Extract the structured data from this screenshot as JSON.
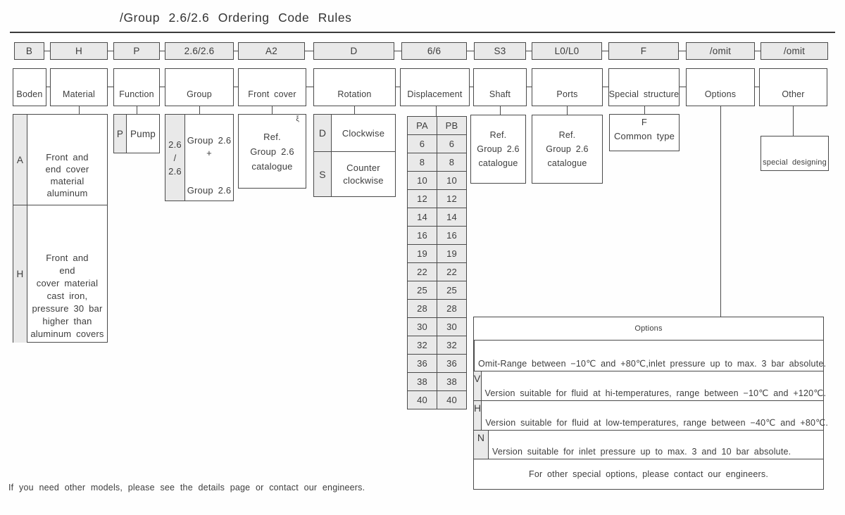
{
  "title": "/Group 2.6/2.6 Ordering Code Rules",
  "columns": [
    {
      "code": "B",
      "category": "Boden"
    },
    {
      "code": "H",
      "category": "Material"
    },
    {
      "code": "P",
      "category": "Function"
    },
    {
      "code": "2.6/2.6",
      "category": "Group"
    },
    {
      "code": "A2",
      "category": "Front cover"
    },
    {
      "code": "D",
      "category": "Rotation"
    },
    {
      "code": "6/6",
      "category": "Displacement"
    },
    {
      "code": "S3",
      "category": "Shaft"
    },
    {
      "code": "L0/L0",
      "category": "Ports"
    },
    {
      "code": "F",
      "category": "Special structure"
    },
    {
      "code": "/omit",
      "category": "Options"
    },
    {
      "code": "/omit",
      "category": "Other"
    }
  ],
  "material": {
    "rows": [
      {
        "code": "A",
        "text": "Front and\nend cover\nmaterial\naluminum"
      },
      {
        "code": "H",
        "text": "Front and\nend\ncover material\ncast iron,\npressure 30 bar\nhigher than\naluminum covers"
      }
    ]
  },
  "function": {
    "code": "P",
    "label": "Pump"
  },
  "group": {
    "code": "2.6\n/\n2.6",
    "top": "Group 2.6\n+",
    "bottom": "Group 2.6"
  },
  "front_cover": {
    "note_icon": "ξ",
    "text": "Ref.\nGroup 2.6\ncatalogue"
  },
  "rotation": {
    "rows": [
      {
        "code": "D",
        "label": "Clockwise"
      },
      {
        "code": "S",
        "label": "Counter\nclockwise"
      }
    ]
  },
  "displacement": {
    "headers": [
      "PA",
      "PB"
    ],
    "rows": [
      [
        "6",
        "6"
      ],
      [
        "8",
        "8"
      ],
      [
        "10",
        "10"
      ],
      [
        "12",
        "12"
      ],
      [
        "14",
        "14"
      ],
      [
        "16",
        "16"
      ],
      [
        "19",
        "19"
      ],
      [
        "22",
        "22"
      ],
      [
        "25",
        "25"
      ],
      [
        "28",
        "28"
      ],
      [
        "30",
        "30"
      ],
      [
        "32",
        "32"
      ],
      [
        "36",
        "36"
      ],
      [
        "38",
        "38"
      ],
      [
        "40",
        "40"
      ]
    ]
  },
  "shaft": {
    "text": "Ref.\nGroup 2.6\ncatalogue"
  },
  "ports": {
    "text": "Ref.\nGroup 2.6\ncatalogue"
  },
  "special_structure": {
    "code": "F",
    "label": "Common type"
  },
  "other": {
    "label": "special designing"
  },
  "options_table": {
    "title": "Options",
    "rows": [
      {
        "code": "",
        "desc": "Omit-Range between −10℃ and +80℃,inlet pressure up to max. 3 bar absolute."
      },
      {
        "code": "V",
        "desc": "Version suitable for fluid at hi-temperatures, range between −10℃ and +120℃."
      },
      {
        "code": "H",
        "desc": "Version suitable for fluid at low-temperatures, range between −40℃ and +80℃."
      },
      {
        "code": "N",
        "desc": "Version suitable for inlet pressure up to max. 3 and 10 bar absolute."
      }
    ],
    "footer": "For other special options, please contact our engineers."
  },
  "footer_note": "If you need other models, please see the details page or contact our engineers.",
  "colors": {
    "box_fill": "#e9e9e9",
    "line": "#4a4a4a",
    "text": "#3d3d3d"
  }
}
